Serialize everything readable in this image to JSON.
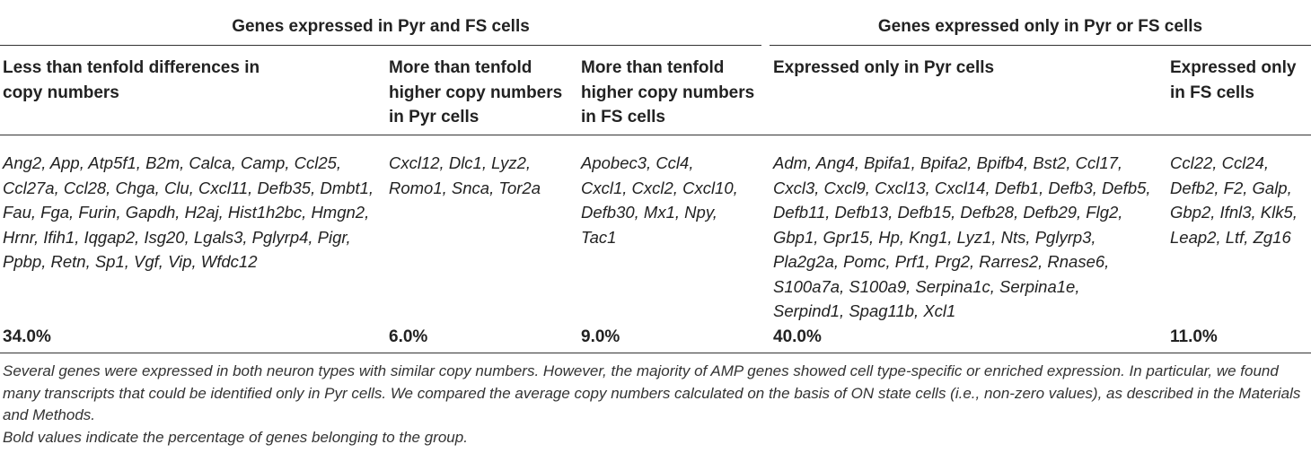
{
  "table": {
    "group_headers": [
      "Genes expressed in Pyr and FS cells",
      "Genes expressed only in Pyr or FS cells"
    ],
    "column_headers": [
      "Less than tenfold differences in copy numbers",
      "More than tenfold higher copy numbers in Pyr cells",
      "More than tenfold higher copy numbers in FS cells",
      "Expressed only in Pyr cells",
      "Expressed only in FS cells"
    ],
    "gene_lists": [
      "Ang2, App, Atp5f1, B2m, Calca, Camp, Ccl25, Ccl27a, Ccl28, Chga, Clu, Cxcl11, Defb35, Dmbt1, Fau, Fga, Furin, Gapdh, H2aj, Hist1h2bc, Hmgn2, Hrnr, Ifih1, Iqgap2, Isg20, Lgals3, Pglyrp4, Pigr, Ppbp, Retn, Sp1, Vgf, Vip, Wfdc12",
      "Cxcl12, Dlc1, Lyz2, Romo1, Snca, Tor2a",
      "Apobec3, Ccl4, Cxcl1, Cxcl2, Cxcl10, Defb30, Mx1, Npy, Tac1",
      "Adm, Ang4, Bpifa1, Bpifa2, Bpifb4, Bst2, Ccl17, Cxcl3, Cxcl9, Cxcl13, Cxcl14, Defb1, Defb3, Defb5, Defb11, Defb13, Defb15, Defb28, Defb29, Flg2, Gbp1, Gpr15, Hp, Kng1, Lyz1, Nts, Pglyrp3, Pla2g2a, Pomc, Prf1, Prg2, Rarres2, Rnase6, S100a7a, S100a9, Serpina1c, Serpina1e, Serpind1, Spag11b, Xcl1",
      "Ccl22, Ccl24, Defb2, F2, Galp, Gbp2, Ifnl3, Klk5, Leap2, Ltf, Zg16"
    ],
    "percentages": [
      "34.0%",
      "6.0%",
      "9.0%",
      "40.0%",
      "11.0%"
    ]
  },
  "footnotes": {
    "description": "Several genes were expressed in both neuron types with similar copy numbers. However, the majority of AMP genes showed cell type-specific or enriched expression. In particular, we found many transcripts that could be identified only in Pyr cells. We compared the average copy numbers calculated on the basis of ON state cells (i.e., non-zero values), as described in the Materials and Methods.",
    "bold_note": "Bold values indicate the percentage of genes belonging to the group."
  }
}
